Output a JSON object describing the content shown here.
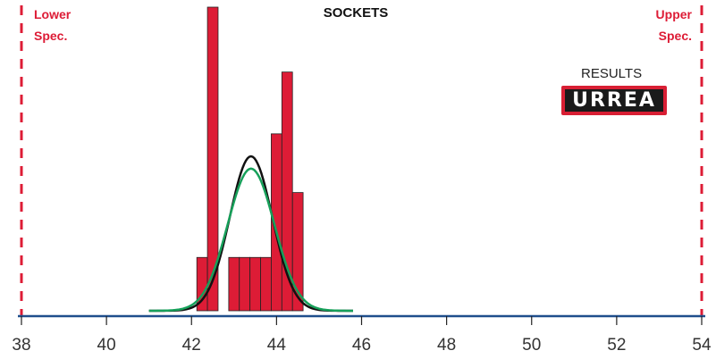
{
  "chart_data": {
    "type": "histogram",
    "title": "SOCKETS",
    "xlim": [
      38,
      54
    ],
    "xticks": [
      38,
      40,
      42,
      44,
      46,
      48,
      50,
      52,
      54
    ],
    "bin_width": 0.25,
    "bars": [
      {
        "x": 42.25,
        "height": 0.19
      },
      {
        "x": 42.5,
        "height": 1.0
      },
      {
        "x": 43.0,
        "height": 0.19
      },
      {
        "x": 43.25,
        "height": 0.19
      },
      {
        "x": 43.5,
        "height": 0.19
      },
      {
        "x": 43.75,
        "height": 0.19
      },
      {
        "x": 44.0,
        "height": 0.59
      },
      {
        "x": 44.25,
        "height": 0.79
      },
      {
        "x": 44.5,
        "height": 0.4
      }
    ],
    "curves": [
      {
        "mean": 43.4,
        "sd": 0.5,
        "peak": 0.5,
        "x_range": [
          41.0,
          45.8
        ],
        "color": "#111111"
      },
      {
        "mean": 43.4,
        "sd": 0.55,
        "peak": 0.46,
        "x_range": [
          41.0,
          45.8
        ],
        "color": "#17a05a"
      }
    ],
    "spec_limits": [
      {
        "value": 38,
        "label_line1": "Lower",
        "label_line2": "Spec."
      },
      {
        "value": 54,
        "label_line1": "Upper",
        "label_line2": "Spec."
      }
    ],
    "colors": {
      "bar": "#dd1c36",
      "axis": "#1f4e8c",
      "spec": "#dd1c36"
    }
  },
  "logo": {
    "caption": "RESULTS",
    "text": "URREA"
  }
}
